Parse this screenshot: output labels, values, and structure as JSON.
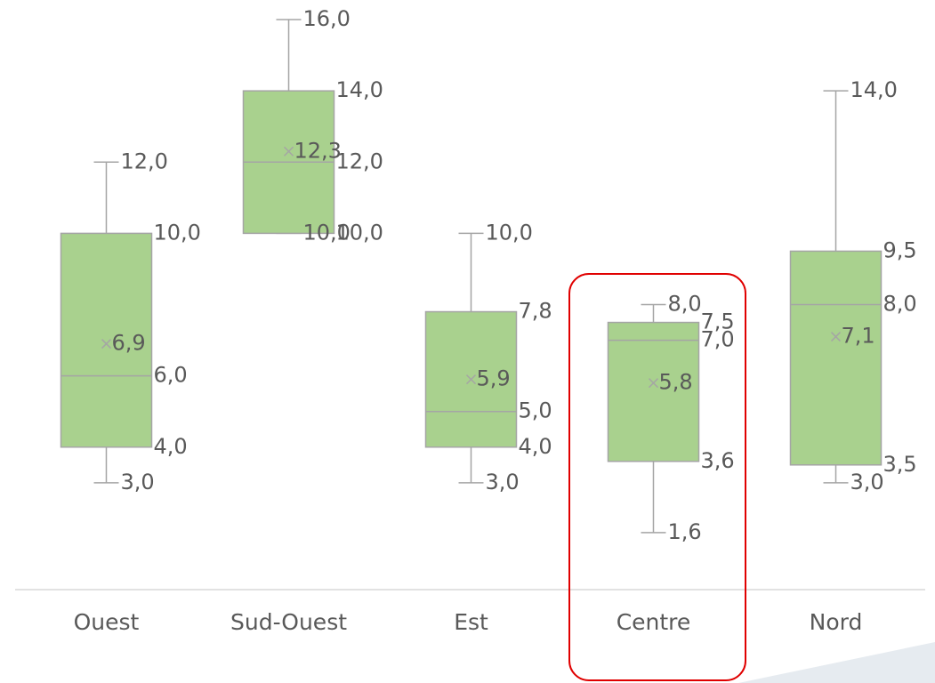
{
  "chart_data": {
    "type": "box",
    "categories": [
      "Ouest",
      "Sud-Ouest",
      "Est",
      "Centre",
      "Nord"
    ],
    "color": "#a9d18e",
    "ylim": [
      0,
      16.5
    ],
    "boxes": [
      {
        "min": 3.0,
        "q1": 4.0,
        "median": 6.0,
        "q3": 10.0,
        "max": 12.0,
        "mean": 6.9,
        "value_labels": {
          "min": "3,0",
          "q1": "4,0",
          "median": "6,0",
          "q3": "10,0",
          "max": "12,0",
          "mean": "6,9"
        }
      },
      {
        "min": 10.0,
        "q1": 10.0,
        "median": 12.0,
        "q3": 14.0,
        "max": 16.0,
        "mean": 12.3,
        "value_labels": {
          "min": "10,0",
          "q1": "10,0",
          "median": "12,0",
          "q3": "14,0",
          "max": "16,0",
          "mean": "12,3"
        }
      },
      {
        "min": 3.0,
        "q1": 4.0,
        "median": 5.0,
        "q3": 7.8,
        "max": 10.0,
        "mean": 5.9,
        "value_labels": {
          "min": "3,0",
          "q1": "4,0",
          "median": "5,0",
          "q3": "7,8",
          "max": "10,0",
          "mean": "5,9"
        }
      },
      {
        "min": 1.6,
        "q1": 3.6,
        "median": 7.0,
        "q3": 7.5,
        "max": 8.0,
        "mean": 5.8,
        "value_labels": {
          "min": "1,6",
          "q1": "3,6",
          "median": "7,0",
          "q3": "7,5",
          "max": "8,0",
          "mean": "5,8"
        }
      },
      {
        "min": 3.0,
        "q1": 3.5,
        "median": 8.0,
        "q3": 9.5,
        "max": 14.0,
        "mean": 7.1,
        "value_labels": {
          "min": "3,0",
          "q1": "3,5",
          "median": "8,0",
          "q3": "9,5",
          "max": "14,0",
          "mean": "7,1"
        }
      }
    ]
  }
}
